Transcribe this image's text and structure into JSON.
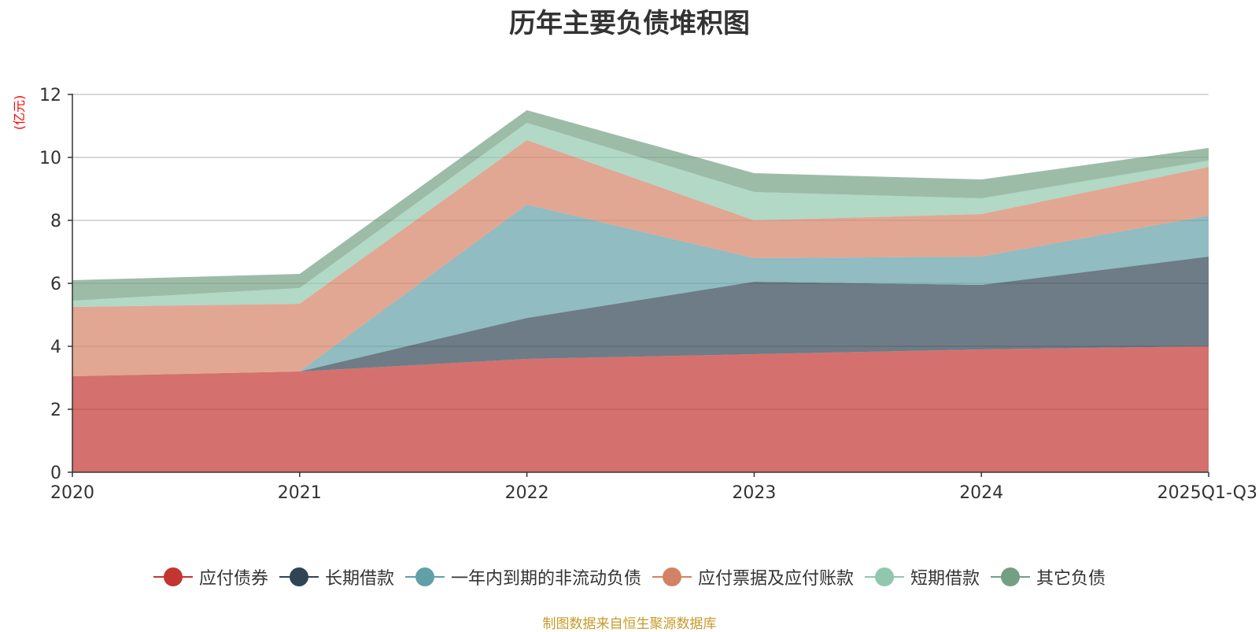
{
  "chart_data": {
    "type": "area",
    "stacked": true,
    "title": "历年主要负债堆积图",
    "ylabel": "(亿元)",
    "xlabel": "",
    "categories": [
      "2020",
      "2021",
      "2022",
      "2023",
      "2024",
      "2025Q1-Q3"
    ],
    "ylim": [
      0,
      12
    ],
    "yticks": [
      0,
      2,
      4,
      6,
      8,
      10,
      12
    ],
    "grid": true,
    "legend_position": "bottom",
    "series": [
      {
        "name": "应付债券",
        "color": "#c23531",
        "values": [
          3.05,
          3.2,
          3.6,
          3.75,
          3.9,
          4.0
        ]
      },
      {
        "name": "长期借款",
        "color": "#2f4554",
        "values": [
          0.0,
          0.0,
          1.3,
          2.3,
          2.05,
          2.85
        ]
      },
      {
        "name": "一年内到期的非流动负债",
        "color": "#61a0a8",
        "values": [
          0.0,
          0.0,
          3.6,
          0.75,
          0.9,
          1.3
        ]
      },
      {
        "name": "应付票据及应付账款",
        "color": "#d48265",
        "values": [
          2.2,
          2.15,
          2.05,
          1.2,
          1.35,
          1.55
        ]
      },
      {
        "name": "短期借款",
        "color": "#91c7ae",
        "values": [
          0.2,
          0.5,
          0.55,
          0.9,
          0.5,
          0.2
        ]
      },
      {
        "name": "其它负债",
        "color": "#749f83",
        "values": [
          0.65,
          0.45,
          0.4,
          0.6,
          0.6,
          0.4
        ]
      }
    ]
  },
  "source_note": "制图数据来自恒生聚源数据库",
  "axis_color": "#333333",
  "ylabel_color": "#ff0000"
}
